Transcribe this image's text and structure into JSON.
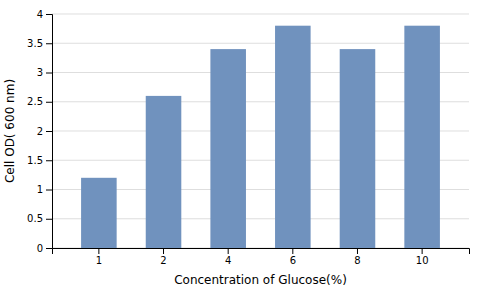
{
  "chart_data": {
    "type": "bar",
    "categories": [
      "1",
      "2",
      "4",
      "6",
      "8",
      "10"
    ],
    "values": [
      1.2,
      2.6,
      3.4,
      3.8,
      3.4,
      3.8
    ],
    "color": "#7092BE",
    "xlabel": "Concentration of Glucose(%)",
    "ylabel": "Cell OD( 600 nm)",
    "ylim": [
      0,
      4
    ],
    "yticks": [
      0,
      0.5,
      1,
      1.5,
      2,
      2.5,
      3,
      3.5,
      4
    ],
    "grid": true
  }
}
